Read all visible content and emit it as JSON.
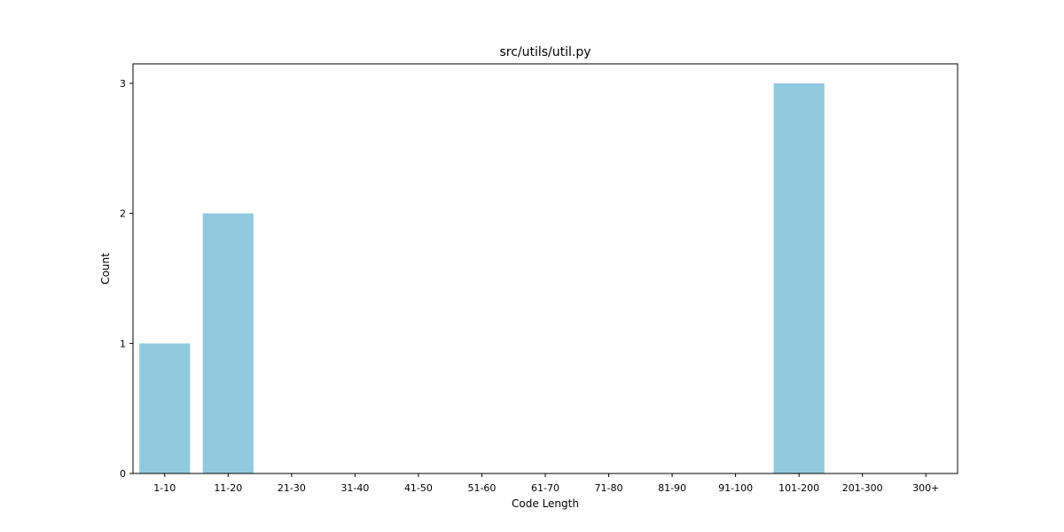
{
  "chart_data": {
    "type": "bar",
    "title": "src/utils/util.py",
    "xlabel": "Code Length",
    "ylabel": "Count",
    "categories": [
      "1-10",
      "11-20",
      "21-30",
      "31-40",
      "41-50",
      "51-60",
      "61-70",
      "71-80",
      "81-90",
      "91-100",
      "101-200",
      "201-300",
      "300+"
    ],
    "values": [
      1,
      2,
      0,
      0,
      0,
      0,
      0,
      0,
      0,
      0,
      3,
      0,
      0
    ],
    "yticks": [
      0,
      1,
      2,
      3
    ],
    "ylim": [
      0,
      3.15
    ],
    "grid": false,
    "bar_color": "#92c9df"
  }
}
